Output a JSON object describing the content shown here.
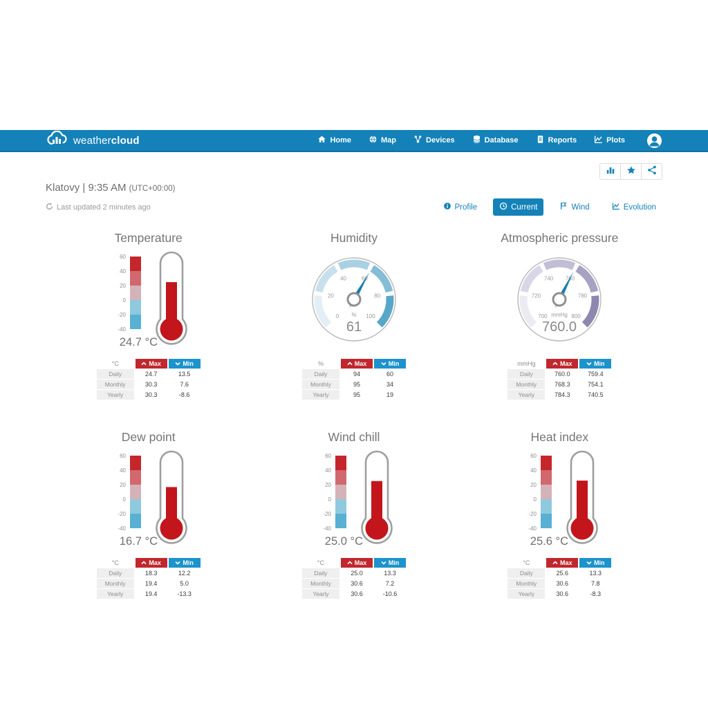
{
  "header": {
    "logo": {
      "part1": "weather",
      "part2": "cloud"
    },
    "nav": [
      {
        "label": "Home",
        "icon": "home-icon"
      },
      {
        "label": "Map",
        "icon": "globe-icon"
      },
      {
        "label": "Devices",
        "icon": "network-icon"
      },
      {
        "label": "Database",
        "icon": "database-icon"
      },
      {
        "label": "Reports",
        "icon": "document-icon"
      },
      {
        "label": "Plots",
        "icon": "chart-line-icon"
      }
    ]
  },
  "toolbar": {
    "buttons": [
      {
        "icon": "bar-chart-icon"
      },
      {
        "icon": "star-icon"
      },
      {
        "icon": "share-icon"
      }
    ]
  },
  "station": {
    "name": "Klatovy",
    "separator": "|",
    "time": "9:35 AM",
    "utc": "(UTC+00:00)",
    "last_updated": "Last updated 2 minutes ago"
  },
  "tabs": [
    {
      "label": "Profile",
      "icon": "info-icon",
      "active": false
    },
    {
      "label": "Current",
      "icon": "clock-icon",
      "active": true
    },
    {
      "label": "Wind",
      "icon": "flag-icon",
      "active": false
    },
    {
      "label": "Evolution",
      "icon": "evolution-chart-icon",
      "active": false
    }
  ],
  "colors": {
    "header_blue": "#1482b8",
    "max_red": "#c1272d",
    "min_blue": "#1c93cc",
    "needle_blue": "#1b7db0",
    "thermo_fill_red": "#c2151c",
    "thermo_scale": [
      "#c5262c",
      "#d1686d",
      "#d4b3b8",
      "#8ec9de",
      "#58b0d2"
    ]
  },
  "table_labels": {
    "max": "Max",
    "min": "Min"
  },
  "panels": [
    {
      "title": "Temperature",
      "type": "thermometer",
      "unit": "°C",
      "value": 24.7,
      "display_value": "24.7 °C",
      "scale": {
        "min": -40,
        "max": 60,
        "ticks": [
          60,
          40,
          20,
          0,
          -20,
          -40
        ]
      },
      "table": {
        "unit": "°C",
        "rows": [
          {
            "label": "Daily",
            "max": "24.7",
            "min": "13.5"
          },
          {
            "label": "Monthly",
            "max": "30.3",
            "min": "7.6"
          },
          {
            "label": "Yearly",
            "max": "30.3",
            "min": "-8.6"
          }
        ]
      }
    },
    {
      "title": "Humidity",
      "type": "gauge",
      "unit": "%",
      "value": 61,
      "display_value": "61",
      "scale": {
        "min": 0,
        "max": 100,
        "ticks": [
          0,
          20,
          40,
          60,
          80,
          100
        ]
      },
      "band_colors": [
        "#e3eef5",
        "#c8e0ec",
        "#a9d0e3",
        "#85bdd7",
        "#58a7c9"
      ],
      "table": {
        "unit": "%",
        "rows": [
          {
            "label": "Daily",
            "max": "94",
            "min": "60"
          },
          {
            "label": "Monthly",
            "max": "95",
            "min": "34"
          },
          {
            "label": "Yearly",
            "max": "95",
            "min": "19"
          }
        ]
      }
    },
    {
      "title": "Atmospheric pressure",
      "type": "gauge",
      "unit": "mmHg",
      "value": 760.0,
      "display_value": "760.0",
      "scale": {
        "min": 700,
        "max": 800,
        "ticks": [
          700,
          720,
          740,
          760,
          780,
          800
        ]
      },
      "band_colors": [
        "#ecebf2",
        "#d9d7e5",
        "#c0bdd4",
        "#a6a2c2",
        "#8d88b0"
      ],
      "table": {
        "unit": "mmHg",
        "rows": [
          {
            "label": "Daily",
            "max": "760.0",
            "min": "759.4"
          },
          {
            "label": "Monthly",
            "max": "768.3",
            "min": "754.1"
          },
          {
            "label": "Yearly",
            "max": "784.3",
            "min": "740.5"
          }
        ]
      }
    },
    {
      "title": "Dew point",
      "type": "thermometer",
      "unit": "°C",
      "value": 16.7,
      "display_value": "16.7 °C",
      "scale": {
        "min": -40,
        "max": 60,
        "ticks": [
          60,
          40,
          20,
          0,
          -20,
          -40
        ]
      },
      "table": {
        "unit": "°C",
        "rows": [
          {
            "label": "Daily",
            "max": "18.3",
            "min": "12.2"
          },
          {
            "label": "Monthly",
            "max": "19.4",
            "min": "5.0"
          },
          {
            "label": "Yearly",
            "max": "19.4",
            "min": "-13.3"
          }
        ]
      }
    },
    {
      "title": "Wind chill",
      "type": "thermometer",
      "unit": "°C",
      "value": 25.0,
      "display_value": "25.0 °C",
      "scale": {
        "min": -40,
        "max": 60,
        "ticks": [
          60,
          40,
          20,
          0,
          -20,
          -40
        ]
      },
      "table": {
        "unit": "°C",
        "rows": [
          {
            "label": "Daily",
            "max": "25.0",
            "min": "13.3"
          },
          {
            "label": "Monthly",
            "max": "30.6",
            "min": "7.2"
          },
          {
            "label": "Yearly",
            "max": "30.6",
            "min": "-10.6"
          }
        ]
      }
    },
    {
      "title": "Heat index",
      "type": "thermometer",
      "unit": "°C",
      "value": 25.6,
      "display_value": "25.6 °C",
      "scale": {
        "min": -40,
        "max": 60,
        "ticks": [
          60,
          40,
          20,
          0,
          -20,
          -40
        ]
      },
      "table": {
        "unit": "°C",
        "rows": [
          {
            "label": "Daily",
            "max": "25.6",
            "min": "13.3"
          },
          {
            "label": "Monthly",
            "max": "30.6",
            "min": "7.8"
          },
          {
            "label": "Yearly",
            "max": "30.6",
            "min": "-8.3"
          }
        ]
      }
    }
  ]
}
